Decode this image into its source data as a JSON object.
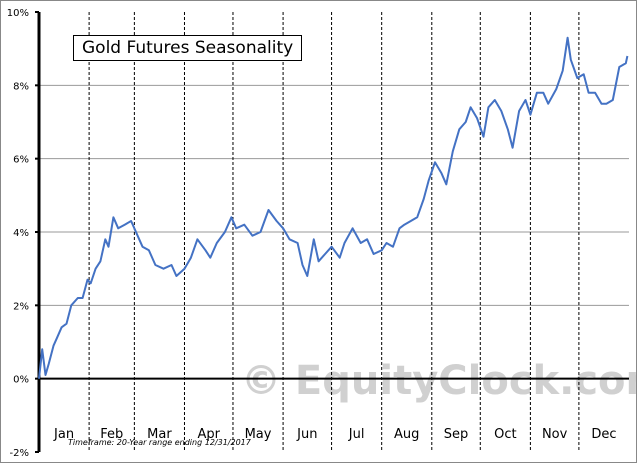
{
  "chart_data": {
    "type": "line",
    "title": "Gold Futures Seasonality",
    "footnote": "Timeframe:   20-Year range ending 12/31/2017",
    "watermark": "© EquityClock.com",
    "xlabel": "",
    "ylabel": "",
    "x_unit": "day of year",
    "xlim": [
      0,
      365
    ],
    "ylim": [
      -2,
      10
    ],
    "y_ticks": [
      "-2%",
      "0%",
      "2%",
      "4%",
      "6%",
      "8%",
      "10%"
    ],
    "y_tick_values": [
      -2,
      0,
      2,
      4,
      6,
      8,
      10
    ],
    "months": [
      "Jan",
      "Feb",
      "Mar",
      "Apr",
      "May",
      "Jun",
      "Jul",
      "Aug",
      "Sep",
      "Oct",
      "Nov",
      "Dec"
    ],
    "month_boundaries": [
      0,
      31,
      59,
      90,
      120,
      151,
      181,
      212,
      243,
      273,
      304,
      334,
      365
    ],
    "grid": true,
    "line_color": "#4472C4",
    "series": [
      {
        "x": [
          0,
          2,
          4,
          6,
          9,
          11,
          14,
          17,
          20,
          24,
          27,
          30,
          32,
          35,
          38,
          41,
          43,
          46,
          49,
          53,
          57,
          61,
          64,
          68,
          72,
          77,
          82,
          85,
          90,
          94,
          98,
          103,
          106,
          110,
          115,
          119,
          122,
          127,
          132,
          137,
          142,
          147,
          151,
          155,
          160,
          163,
          166,
          170,
          173,
          177,
          181,
          186,
          189,
          194,
          199,
          203,
          207,
          212,
          215,
          219,
          223,
          226,
          230,
          234,
          238,
          241,
          245,
          249,
          252,
          256,
          260,
          264,
          267,
          271,
          275,
          278,
          282,
          286,
          290,
          293,
          297,
          301,
          304,
          308,
          312,
          315,
          320,
          324,
          327,
          329,
          333,
          337,
          340,
          344,
          348,
          351,
          355,
          359,
          363,
          364
        ],
        "y": [
          0,
          0.8,
          0.1,
          0.4,
          0.9,
          1.1,
          1.4,
          1.5,
          2.0,
          2.2,
          2.2,
          2.7,
          2.6,
          3.0,
          3.2,
          3.8,
          3.6,
          4.4,
          4.1,
          4.2,
          4.3,
          3.9,
          3.6,
          3.5,
          3.1,
          3.0,
          3.1,
          2.8,
          3.0,
          3.3,
          3.8,
          3.5,
          3.3,
          3.7,
          4.0,
          4.4,
          4.1,
          4.2,
          3.9,
          4.0,
          4.6,
          4.3,
          4.1,
          3.8,
          3.7,
          3.1,
          2.8,
          3.8,
          3.2,
          3.4,
          3.6,
          3.3,
          3.7,
          4.1,
          3.7,
          3.8,
          3.4,
          3.5,
          3.7,
          3.6,
          4.1,
          4.2,
          4.3,
          4.4,
          4.9,
          5.4,
          5.9,
          5.6,
          5.3,
          6.2,
          6.8,
          7.0,
          7.4,
          7.1,
          6.6,
          7.4,
          7.6,
          7.3,
          6.8,
          6.3,
          7.3,
          7.6,
          7.2,
          7.8,
          7.8,
          7.5,
          7.9,
          8.4,
          9.3,
          8.7,
          8.2,
          8.3,
          7.8,
          7.8,
          7.5,
          7.5,
          7.6,
          8.5,
          8.6,
          8.8
        ]
      }
    ]
  }
}
